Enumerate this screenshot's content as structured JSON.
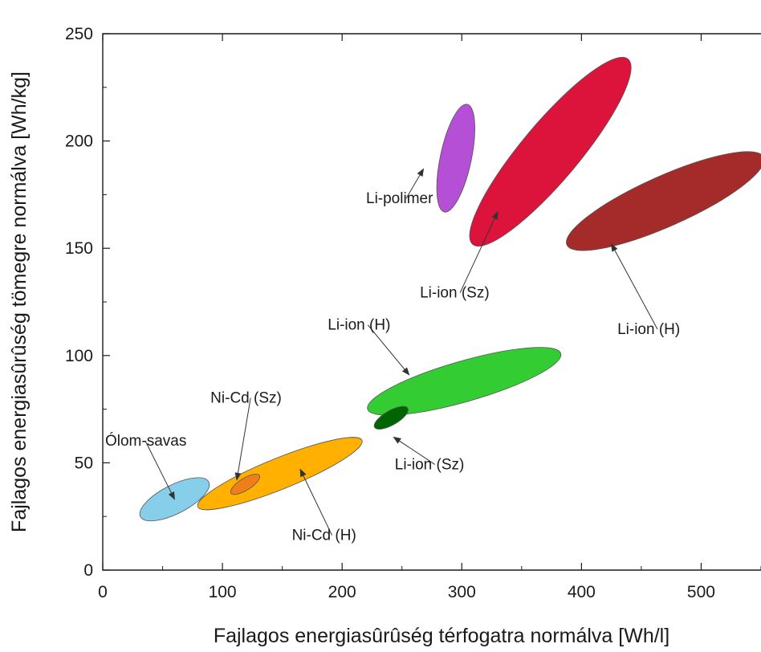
{
  "chart_data": {
    "type": "scatter",
    "title": "",
    "xlabel": "Fajlagos energiasûrûség térfogatra normálva [Wh/l]",
    "ylabel": "Fajlagos energiasûrûség tömegre normálva [Wh/kg]",
    "xlim": [
      0,
      550
    ],
    "ylim": [
      0,
      250
    ],
    "x_ticks": [
      "0",
      "100",
      "200",
      "300",
      "400",
      "500"
    ],
    "y_ticks": [
      "0",
      "50",
      "100",
      "150",
      "200",
      "250"
    ],
    "grid": false,
    "legend": "none",
    "regions": [
      {
        "name": "Ólom-savas",
        "color": "#87CEEB",
        "cx": 60,
        "cy": 33,
        "rx": 32,
        "ry": 12,
        "angle": 27
      },
      {
        "name": "Ni-Cd (H)",
        "color": "#FFB000",
        "cx": 148,
        "cy": 45,
        "rx": 74,
        "ry": 13,
        "angle": 22
      },
      {
        "name": "Ni-Cd (Sz)",
        "color": "#F07F1A",
        "cx": 119,
        "cy": 40,
        "rx": 14,
        "ry": 5,
        "angle": 32
      },
      {
        "name": "Li-ion (H)",
        "color": "#33CC33",
        "cx": 302,
        "cy": 88,
        "rx": 84,
        "ry": 17,
        "angle": 16
      },
      {
        "name": "Li-ion (Sz)",
        "color": "#006400",
        "cx": 241,
        "cy": 71,
        "rx": 16,
        "ry": 6,
        "angle": 30
      },
      {
        "name": "Li-ion (Sz)",
        "color": "#DC143C",
        "cx": 374,
        "cy": 195,
        "rx": 101,
        "ry": 24,
        "angle": 50
      },
      {
        "name": "Li-ion (H)",
        "color": "#A52A2A",
        "cx": 470,
        "cy": 172,
        "rx": 90,
        "ry": 21,
        "angle": 24
      },
      {
        "name": "Li-polimer",
        "color": "#B44FD6",
        "cx": 295,
        "cy": 192,
        "rx": 46,
        "ry": 13,
        "angle": 78
      }
    ],
    "annotations": [
      {
        "text": "Li-polimer",
        "x": 220,
        "y": 171,
        "anchor": "start",
        "arrow_to": [
          268,
          187
        ]
      },
      {
        "text": "Li-ion (Sz)",
        "x": 265,
        "y": 127,
        "anchor": "start",
        "arrow_to": [
          330,
          167
        ]
      },
      {
        "text": "Li-ion (H)",
        "x": 430,
        "y": 110,
        "anchor": "start",
        "arrow_to": [
          425,
          152
        ]
      },
      {
        "text": "Li-ion (H)",
        "x": 188,
        "y": 112,
        "anchor": "start",
        "arrow_to": [
          256,
          91
        ]
      },
      {
        "text": "Ni-Cd (Sz)",
        "x": 90,
        "y": 78,
        "anchor": "start",
        "arrow_to": [
          112,
          42
        ]
      },
      {
        "text": "Ólom-savas",
        "x": 2,
        "y": 58,
        "anchor": "start",
        "arrow_to": [
          60,
          33
        ]
      },
      {
        "text": "Li-ion (Sz)",
        "x": 244,
        "y": 47,
        "anchor": "start",
        "arrow_to": [
          243,
          62
        ]
      },
      {
        "text": "Ni-Cd (H)",
        "x": 158,
        "y": 14,
        "anchor": "start",
        "arrow_to": [
          165,
          47
        ]
      }
    ]
  }
}
